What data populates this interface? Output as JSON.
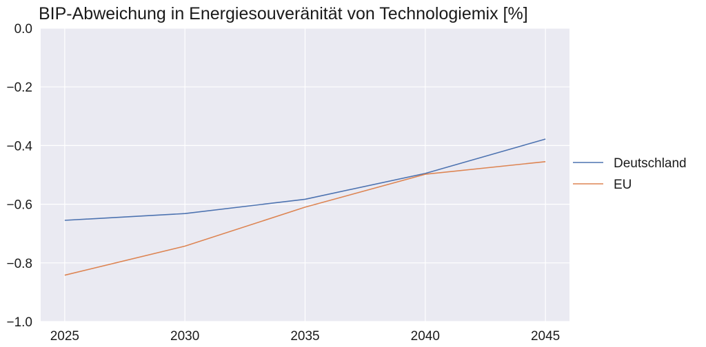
{
  "chart_data": {
    "type": "line",
    "title": "BIP-Abweichung in Energiesouveränität von Technologiemix [%]",
    "xlabel": "",
    "ylabel": "",
    "x": [
      2025,
      2030,
      2035,
      2040,
      2045
    ],
    "x_tick_labels": [
      "2025",
      "2030",
      "2035",
      "2040",
      "2045"
    ],
    "y_tick_labels": [
      "0.0",
      "−0.2",
      "−0.4",
      "−0.6",
      "−0.8",
      "−1.0"
    ],
    "y_ticks": [
      0.0,
      -0.2,
      -0.4,
      -0.6,
      -0.8,
      -1.0
    ],
    "ylim": [
      -1.0,
      0.0
    ],
    "xlim": [
      2024,
      2046
    ],
    "grid": true,
    "legend_position": "right",
    "series": [
      {
        "name": "Deutschland",
        "color": "#4c72b0",
        "values": [
          -0.655,
          -0.632,
          -0.583,
          -0.495,
          -0.378
        ]
      },
      {
        "name": "EU",
        "color": "#dd8452",
        "values": [
          -0.842,
          -0.743,
          -0.61,
          -0.498,
          -0.455
        ]
      }
    ]
  },
  "colors": {
    "plot_background": "#eaeaf2",
    "grid": "#ffffff"
  }
}
